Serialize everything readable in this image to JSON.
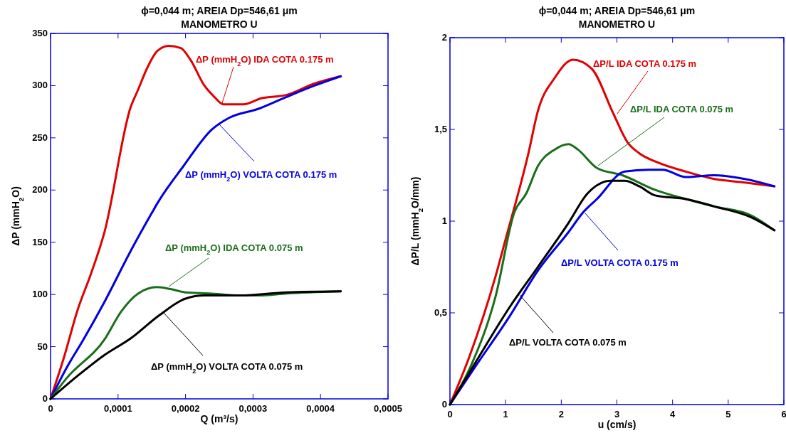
{
  "chart_data": [
    {
      "type": "line",
      "title": "ϕ=0,044 m; AREIA Dp=546,61 μm",
      "subtitle": "MANOMETRO U",
      "xlabel": "Q (m³/s)",
      "ylabel": "ΔP (mmH$_{2}$O)",
      "xlim": [
        0,
        0.0005
      ],
      "ylim": [
        0,
        350
      ],
      "xticks": [
        0,
        {
          "value": 0.0001,
          "label": "0,0001"
        },
        {
          "value": 0.0002,
          "label": "0,0002"
        },
        {
          "value": 0.0003,
          "label": "0,0003"
        },
        {
          "value": 0.0004,
          "label": "0,0004"
        },
        {
          "value": 0.0005,
          "label": "0,0005"
        }
      ],
      "yticks": [
        0,
        50,
        100,
        150,
        200,
        250,
        300,
        350
      ],
      "series": [
        {
          "name": "ΔP (mmH$_{2}$O) IDA COTA 0.175 m",
          "color": "#e00000",
          "x": [
            0,
            2e-05,
            4e-05,
            6e-05,
            8e-05,
            0.000119,
            0.000129,
            0.000144,
            0.000158,
            0.000175,
            0.000193,
            0.000207,
            0.000228,
            0.000243,
            0.000256,
            0.000285,
            0.000313,
            0.000349,
            0.000391,
            0.00043
          ],
          "values": [
            0,
            40,
            85,
            120,
            160,
            280,
            295,
            318,
            333,
            338,
            336,
            325,
            300,
            289,
            282,
            282,
            288,
            291,
            302,
            309
          ]
        },
        {
          "name": "ΔP (mmH$_{2}$O) VOLTA COTA 0.175 m",
          "color": "#0000e0",
          "x": [
            0,
            2.4e-05,
            4.8e-05,
            8e-05,
            0.000119,
            0.00015,
            0.000158,
            0.000197,
            0.000239,
            0.000264,
            0.000309,
            0.000349,
            0.000391,
            0.00043
          ],
          "values": [
            0,
            30,
            56,
            93,
            142,
            178,
            187,
            223,
            258,
            269,
            278,
            289,
            300,
            309
          ]
        },
        {
          "name": "ΔP (mmH$_{2}$O) IDA COTA 0.075 m",
          "color": "#1a6e1a",
          "x": [
            0,
            2.4e-05,
            8e-05,
            0.000105,
            0.00013,
            0.000158,
            0.000179,
            0.0002,
            0.000235,
            0.000281,
            0.000309,
            0.00035,
            0.00043
          ],
          "values": [
            0,
            20,
            57,
            84,
            101,
            107,
            105,
            102,
            101,
            99,
            99,
            101,
            103
          ]
        },
        {
          "name": "ΔP (mmH$_{2}$O) VOLTA COTA 0.075 m",
          "color": "#000000",
          "x": [
            0,
            4e-05,
            8e-05,
            0.000119,
            0.000161,
            0.0002,
            0.000228,
            0.000281,
            0.00035,
            0.00043
          ],
          "values": [
            0,
            22,
            42,
            58,
            80,
            96,
            99,
            99,
            102,
            103
          ]
        }
      ]
    },
    {
      "type": "line",
      "title": "ϕ=0,044 m; AREIA Dp=546,61 μm",
      "subtitle": "MANOMETRO U",
      "xlabel": "u (cm/s)",
      "ylabel": "ΔP/L (mmH$_{2}$O/mm)",
      "xlim": [
        0,
        6
      ],
      "ylim": [
        0,
        2
      ],
      "xticks": [
        0,
        1,
        2,
        3,
        4,
        5,
        6
      ],
      "yticks": [
        0,
        {
          "value": 0.5,
          "label": "0,5"
        },
        1,
        {
          "value": 1.5,
          "label": "1,5"
        },
        2
      ],
      "series": [
        {
          "name": "ΔP/L IDA COTA 0.175 m",
          "color": "#e00000",
          "x": [
            0,
            0.36,
            0.82,
            0.99,
            1.41,
            1.58,
            1.88,
            2.21,
            2.55,
            2.93,
            3.19,
            3.4,
            3.73,
            4.24,
            4.75,
            5.3,
            5.83
          ],
          "values": [
            0,
            0.27,
            0.7,
            0.89,
            1.37,
            1.6,
            1.78,
            1.88,
            1.83,
            1.59,
            1.43,
            1.37,
            1.32,
            1.27,
            1.23,
            1.21,
            1.19
          ]
        },
        {
          "name": "ΔP/L IDA COTA 0.075 m",
          "color": "#1a6e1a",
          "x": [
            0,
            0.36,
            0.82,
            1.16,
            1.37,
            1.58,
            1.88,
            2.13,
            2.3,
            2.64,
            3.1,
            3.69,
            4.24,
            4.75,
            5.42,
            5.83
          ],
          "values": [
            0,
            0.2,
            0.59,
            1.05,
            1.15,
            1.3,
            1.39,
            1.42,
            1.39,
            1.29,
            1.25,
            1.17,
            1.12,
            1.08,
            1.03,
            0.95
          ]
        },
        {
          "name": "ΔP/L VOLTA COTA 0.175 m",
          "color": "#0000e0",
          "x": [
            0,
            0.44,
            1.07,
            1.58,
            2.13,
            2.4,
            2.64,
            3.14,
            3.57,
            3.82,
            4.24,
            4.75,
            5.3,
            5.83
          ],
          "values": [
            0,
            0.2,
            0.48,
            0.73,
            0.94,
            1.05,
            1.12,
            1.27,
            1.28,
            1.28,
            1.24,
            1.25,
            1.23,
            1.19
          ]
        },
        {
          "name": "ΔP/L VOLTA COTA 0.075 m",
          "color": "#000000",
          "x": [
            0,
            0.44,
            1.07,
            1.58,
            2.13,
            2.47,
            2.89,
            3.14,
            3.4,
            3.69,
            4.24,
            4.75,
            5.42,
            5.83
          ],
          "values": [
            0,
            0.22,
            0.53,
            0.75,
            0.99,
            1.15,
            1.22,
            1.22,
            1.19,
            1.14,
            1.12,
            1.08,
            1.02,
            0.95
          ]
        }
      ]
    }
  ]
}
